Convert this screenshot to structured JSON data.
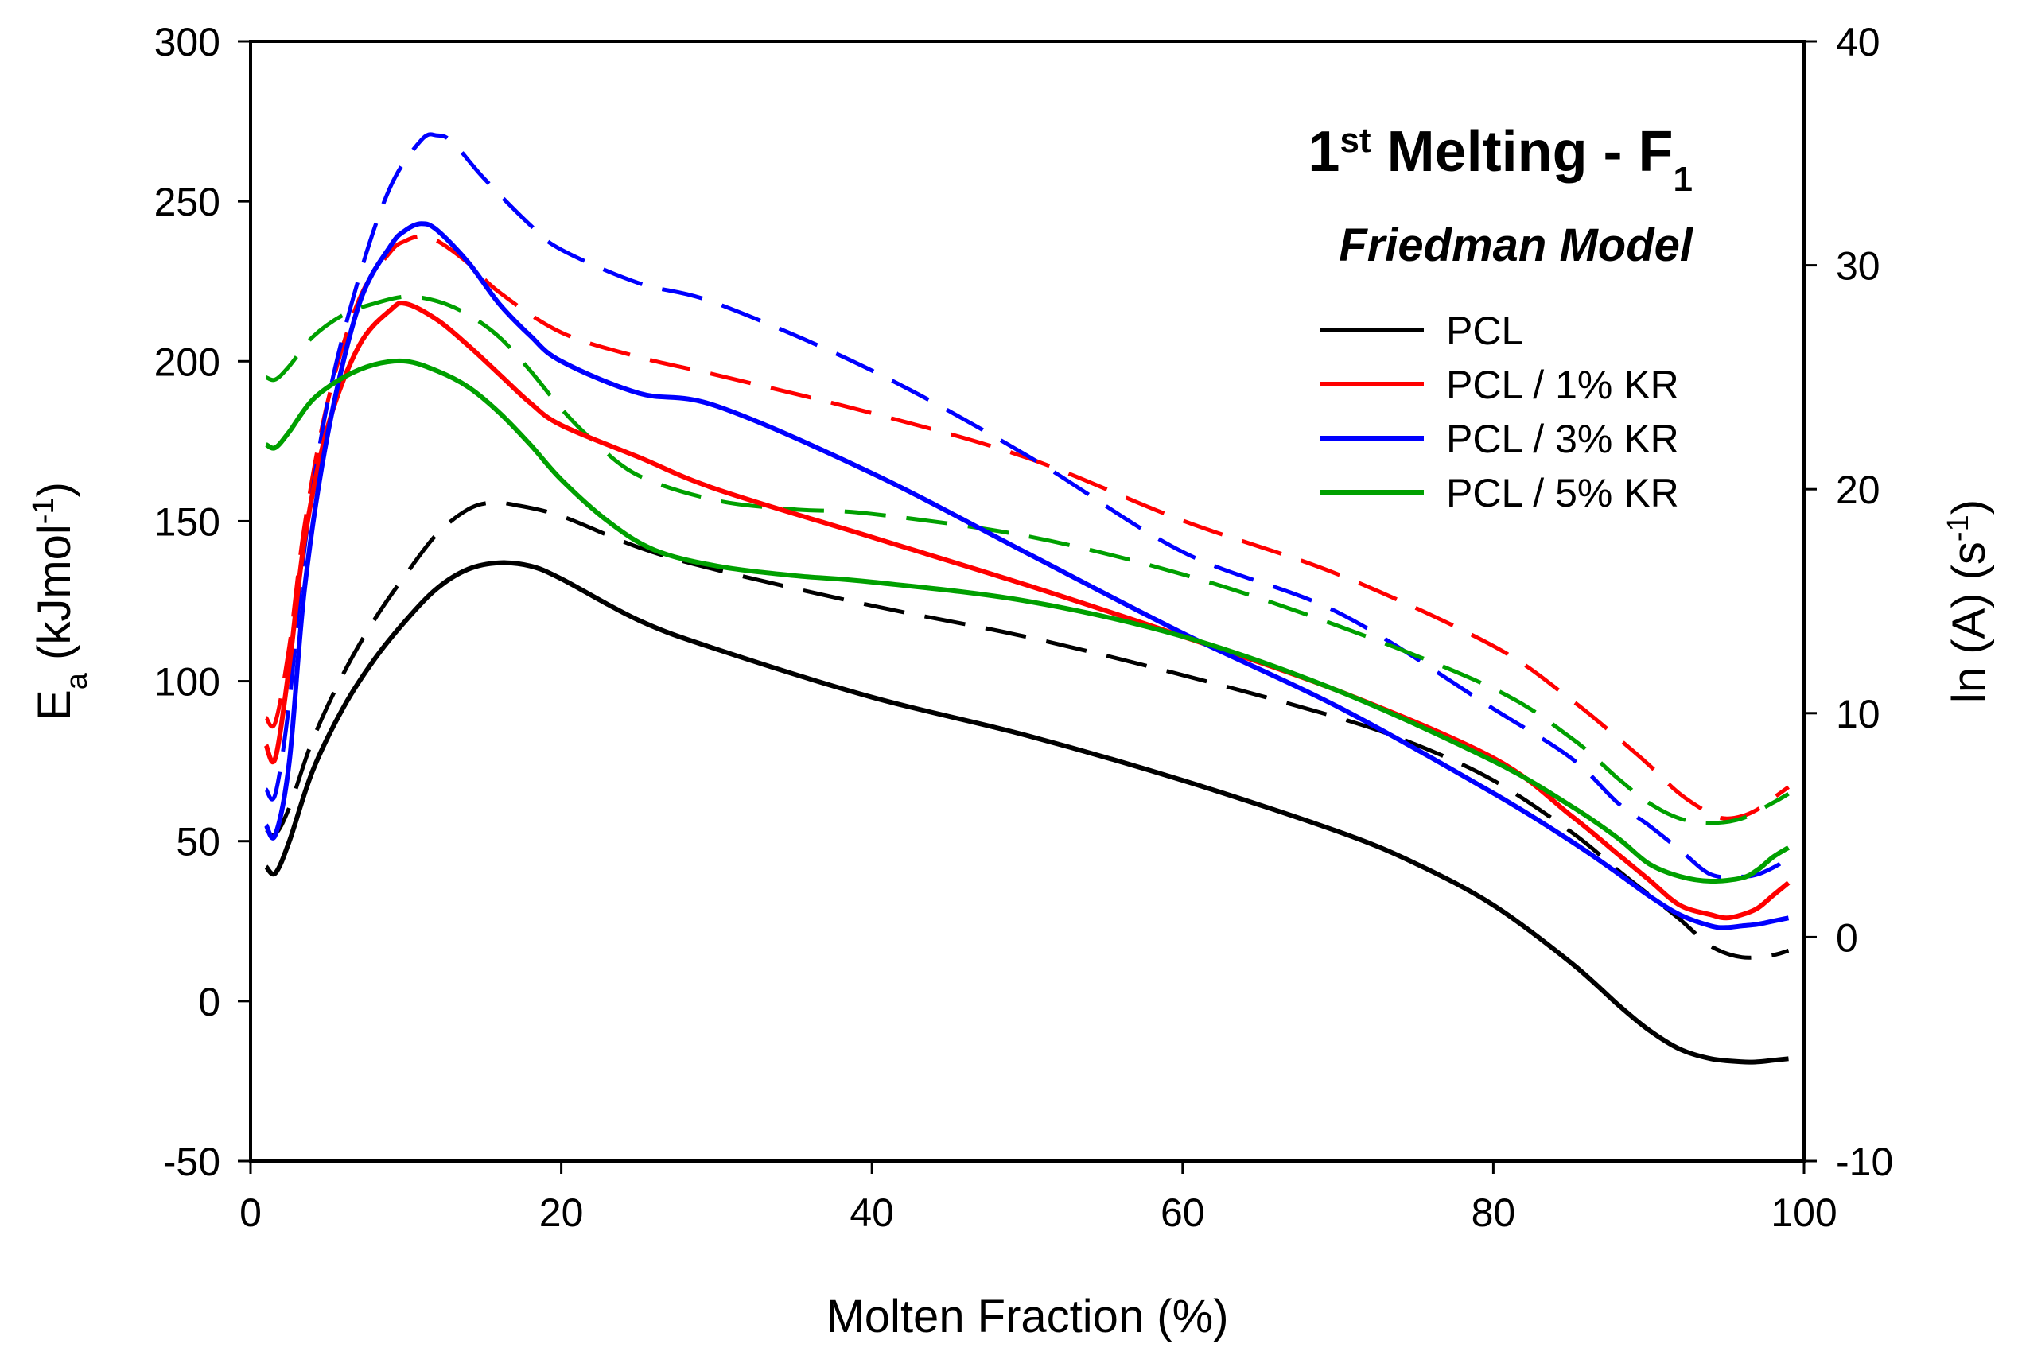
{
  "chart_data": {
    "type": "line",
    "title": {
      "main": "1",
      "main_sup": "st",
      "main_rest": " Melting - F",
      "main_sub": "1",
      "subtitle": "Friedman Model"
    },
    "xlabel": "Molten Fraction (%)",
    "ylabel": {
      "base": "E",
      "sub": "a",
      "mid": " (kJmol",
      "sup": "-1",
      "end": ")"
    },
    "y2label": {
      "base": "ln (A) (s",
      "sup": "-1",
      "end": ")"
    },
    "xlim": [
      0,
      100
    ],
    "ylim": [
      -50,
      300
    ],
    "y2lim": [
      -10,
      40
    ],
    "x_ticks": [
      "0",
      "20",
      "40",
      "60",
      "80",
      "100"
    ],
    "y_ticks": [
      "-50",
      "0",
      "50",
      "100",
      "150",
      "200",
      "250",
      "300"
    ],
    "y2_ticks": [
      "-10",
      "0",
      "10",
      "20",
      "30",
      "40"
    ],
    "legend_position": "top-right",
    "legend_note": "solid = Ea (left axis), dashed = ln(A) (right axis)",
    "series": [
      {
        "name": "PCL",
        "color": "#000000",
        "ea": {
          "x": [
            1,
            1.6,
            2.5,
            4,
            6,
            8,
            10,
            12,
            14,
            16,
            18,
            20,
            25,
            30,
            40,
            50,
            60,
            70,
            75,
            80,
            85,
            88,
            90,
            92,
            94,
            96,
            97,
            98,
            99
          ],
          "y": [
            42,
            40,
            50,
            72,
            92,
            107,
            119,
            129,
            135,
            137,
            136,
            132,
            119,
            110,
            95,
            83,
            69,
            53,
            43,
            30,
            12,
            -1,
            -9,
            -15,
            -18,
            -19,
            -19,
            -18.5,
            -18
          ]
        },
        "lnA": {
          "x": [
            1,
            1.6,
            2.5,
            4,
            6,
            8,
            10,
            12,
            14,
            15.5,
            17,
            20,
            25,
            30,
            40,
            50,
            60,
            70,
            75,
            80,
            85,
            88,
            90,
            92,
            94,
            96,
            98,
            99
          ],
          "y": [
            4.8,
            4.6,
            5.8,
            8.8,
            11.8,
            14.2,
            16.2,
            18,
            19.1,
            19.4,
            19.3,
            18.8,
            17.4,
            16.4,
            14.8,
            13.4,
            11.7,
            9.8,
            8.6,
            7,
            4.7,
            3,
            1.9,
            0.8,
            -0.4,
            -0.9,
            -0.8,
            -0.6
          ]
        }
      },
      {
        "name": "PCL / 1% KR",
        "color": "#ff0000",
        "ea": {
          "x": [
            1,
            1.6,
            2.5,
            3.5,
            5,
            7,
            9,
            10,
            12,
            14,
            16,
            18,
            20,
            25,
            30,
            40,
            50,
            60,
            70,
            80,
            85,
            88,
            90,
            92,
            94,
            95,
            96,
            97,
            98,
            99
          ],
          "y": [
            80,
            76,
            105,
            145,
            180,
            205,
            216,
            218,
            213,
            205,
            196,
            187,
            180,
            170,
            160,
            145,
            130,
            114,
            97,
            76,
            58,
            46,
            38,
            30,
            27,
            26,
            27,
            29,
            33,
            37
          ]
        },
        "lnA": {
          "x": [
            1,
            1.6,
            2.5,
            3.5,
            5,
            7,
            9,
            10,
            11,
            12,
            14,
            16,
            20,
            25,
            30,
            40,
            50,
            60,
            70,
            80,
            85,
            88,
            90,
            92,
            94,
            95,
            96,
            97,
            98,
            99
          ],
          "y": [
            9.8,
            9.6,
            13,
            18.5,
            24,
            28.5,
            30.6,
            31.1,
            31.3,
            31.1,
            30.1,
            28.8,
            27,
            25.9,
            25.1,
            23.4,
            21.4,
            18.6,
            16.2,
            13,
            10.6,
            8.9,
            7.7,
            6.4,
            5.5,
            5.3,
            5.4,
            5.7,
            6.2,
            6.7
          ]
        }
      },
      {
        "name": "PCL / 3% KR",
        "color": "#0000ff",
        "ea": {
          "x": [
            1,
            1.6,
            2.5,
            3.5,
            5,
            7,
            9,
            10,
            11,
            12,
            14,
            16,
            18,
            20,
            25,
            30,
            40,
            50,
            60,
            70,
            80,
            85,
            88,
            90,
            92,
            94,
            95,
            96,
            97,
            98,
            99
          ],
          "y": [
            55,
            52,
            75,
            130,
            178,
            218,
            236,
            241,
            243,
            241,
            231,
            218,
            208,
            200,
            190,
            186,
            165,
            140,
            115,
            92,
            65,
            50,
            40,
            33,
            27,
            23.5,
            23,
            23.5,
            24,
            25,
            26
          ]
        },
        "lnA": {
          "x": [
            1,
            1.6,
            2.5,
            3.5,
            5,
            7,
            9,
            11,
            12,
            13,
            15,
            18,
            20,
            25,
            30,
            40,
            50,
            60,
            70,
            80,
            85,
            88,
            90,
            92,
            94,
            96,
            97,
            98,
            99
          ],
          "y": [
            6.6,
            6.4,
            10.5,
            17.5,
            24,
            29.5,
            33.5,
            35.6,
            35.8,
            35.5,
            33.9,
            31.8,
            30.7,
            29.2,
            28.3,
            25.3,
            21.5,
            17.2,
            14.5,
            10.2,
            8,
            6,
            5,
            3.9,
            2.8,
            2.7,
            2.8,
            3.1,
            3.5
          ]
        }
      },
      {
        "name": "PCL / 5% KR",
        "color": "#00a000",
        "ea": {
          "x": [
            1,
            1.6,
            2.5,
            4,
            6,
            8,
            10,
            12,
            14,
            16,
            18,
            20,
            23,
            26,
            30,
            35,
            40,
            50,
            60,
            70,
            80,
            85,
            88,
            90,
            92,
            94,
            96,
            97,
            98,
            99
          ],
          "y": [
            174,
            173,
            178,
            188,
            195,
            199,
            200,
            197,
            192,
            184,
            174,
            163,
            150,
            141,
            136,
            133,
            131,
            125,
            114,
            97,
            75,
            61,
            51,
            43,
            39,
            37.5,
            38.5,
            41,
            45,
            48
          ]
        },
        "lnA": {
          "x": [
            1,
            1.6,
            2.5,
            4,
            6,
            8,
            10,
            12,
            14,
            16,
            18,
            20,
            22,
            25,
            30,
            35,
            40,
            50,
            60,
            70,
            80,
            85,
            88,
            90,
            92,
            94,
            96,
            98,
            99
          ],
          "y": [
            25,
            24.9,
            25.5,
            26.8,
            27.8,
            28.3,
            28.6,
            28.4,
            27.8,
            26.8,
            25.3,
            23.6,
            22.2,
            20.6,
            19.5,
            19.1,
            18.9,
            17.9,
            16.2,
            13.9,
            11.1,
            8.9,
            7.1,
            6,
            5.3,
            5.1,
            5.3,
            6,
            6.4
          ]
        }
      }
    ]
  }
}
